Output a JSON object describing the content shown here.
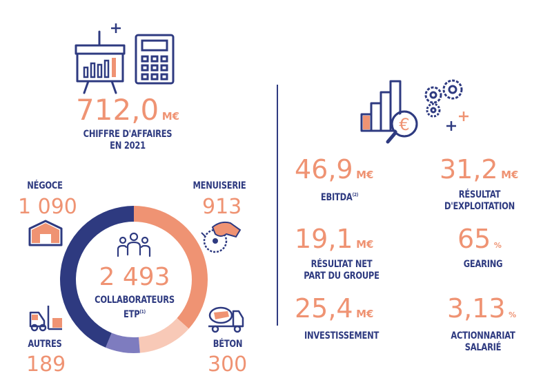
{
  "colors": {
    "navy": "#2e3a80",
    "salmon": "#ef9373",
    "light_salmon": "#f8c9b7",
    "violet": "#7e7cbf"
  },
  "revenue": {
    "value": "712,0",
    "unit": "M€",
    "label_line1": "CHIFFRE D'AFFAIRES",
    "label_line2": "EN 2021"
  },
  "total_staff": {
    "value": "2 493",
    "label_line1": "COLLABORATEURS",
    "label_line2": "ETP",
    "note": "(1)"
  },
  "categories": {
    "negoce": {
      "label": "NÉGOCE",
      "value": "1 090",
      "icon": "warehouse-icon"
    },
    "menuiserie": {
      "label": "MENUISERIE",
      "value": "913",
      "icon": "circular-saw-icon"
    },
    "autres": {
      "label": "AUTRES",
      "value": "189",
      "icon": "forklift-icon"
    },
    "beton": {
      "label": "BÉTON",
      "value": "300",
      "icon": "concrete-mixer-truck-icon"
    }
  },
  "chart_data": {
    "type": "pie",
    "categories": [
      "NÉGOCE",
      "MENUISERIE",
      "BÉTON",
      "AUTRES"
    ],
    "values": [
      1090,
      913,
      300,
      189
    ],
    "colors": [
      "#2e3a80",
      "#ef9373",
      "#f8c9b7",
      "#7e7cbf"
    ]
  },
  "kpis": [
    {
      "value": "46,9",
      "unit": "M€",
      "label_line1": "EBITDA",
      "label_line2": "",
      "note": "(2)"
    },
    {
      "value": "31,2",
      "unit": "M€",
      "label_line1": "RÉSULTAT",
      "label_line2": "D'EXPLOITATION",
      "note": ""
    },
    {
      "value": "19,1",
      "unit": "M€",
      "label_line1": "RÉSULTAT NET",
      "label_line2": "PART DU GROUPE",
      "note": ""
    },
    {
      "value": "65",
      "unit": "%",
      "label_line1": "GEARING",
      "label_line2": "",
      "note": ""
    },
    {
      "value": "25,4",
      "unit": "M€",
      "label_line1": "INVESTISSEMENT",
      "label_line2": "",
      "note": ""
    },
    {
      "value": "3,13",
      "unit": "%",
      "label_line1": "ACTIONNARIAT",
      "label_line2": "SALARIÉ",
      "note": ""
    }
  ],
  "icons": {
    "presentation": "presentation-board-icon",
    "calculator": "calculator-icon",
    "finance": "euro-magnifier-gears-icon",
    "team": "team-people-icon"
  }
}
